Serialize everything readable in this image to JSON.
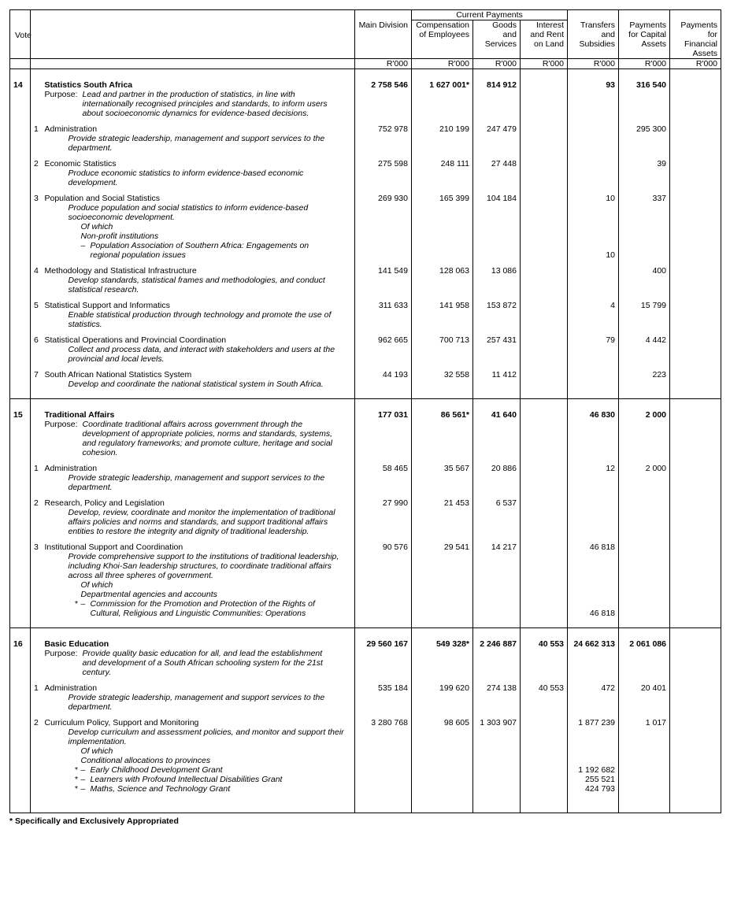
{
  "headers": {
    "vote": "Vote",
    "mainDivision": "Main Division",
    "currentPayments": "Current Payments",
    "compensation": "Compensation of Employees",
    "goodsServices": "Goods and Services",
    "interest": "Interest and Rent on Land",
    "transfers": "Transfers and Subsidies",
    "capital": "Payments for Capital Assets",
    "financial": "Payments for Financial Assets",
    "unit": "R'000"
  },
  "labels": {
    "purpose": "Purpose:",
    "ofWhich": "Of which",
    "footnote": "* Specifically and Exclusively Appropriated"
  },
  "votes": [
    {
      "num": "14",
      "title": "Statistics South Africa",
      "purpose": "Lead and partner in the production of statistics, in line with internationally recognised principles and standards, to inform users about socioeconomic dynamics for evidence-based decisions.",
      "totals": {
        "main": "2 758 546",
        "comp": "1 627 001*",
        "gs": "814 912",
        "int": "",
        "tr": "93",
        "cap": "316 540",
        "fin": ""
      },
      "progs": [
        {
          "n": "1",
          "name": "Administration",
          "desc": "Provide strategic leadership, management and support services to the department.",
          "v": {
            "main": "752 978",
            "comp": "210 199",
            "gs": "247 479",
            "int": "",
            "tr": "",
            "cap": "295 300",
            "fin": ""
          }
        },
        {
          "n": "2",
          "name": "Economic Statistics",
          "desc": "Produce economic statistics to inform evidence-based economic development.",
          "v": {
            "main": "275 598",
            "comp": "248 111",
            "gs": "27 448",
            "int": "",
            "tr": "",
            "cap": "39",
            "fin": ""
          }
        },
        {
          "n": "3",
          "name": "Population and Social Statistics",
          "desc": "Produce population and social statistics to inform evidence-based socioeconomic development.",
          "v": {
            "main": "269 930",
            "comp": "165 399",
            "gs": "104 184",
            "int": "",
            "tr": "10",
            "cap": "337",
            "fin": ""
          },
          "ofWhich": {
            "header": "Non-profit institutions",
            "items": [
              {
                "label": "Population Association of Southern Africa: Engagements on regional population issues",
                "v": {
                  "tr": "10"
                }
              }
            ]
          }
        },
        {
          "n": "4",
          "name": "Methodology and Statistical Infrastructure",
          "desc": "Develop standards, statistical frames and methodologies, and conduct statistical research.",
          "v": {
            "main": "141 549",
            "comp": "128 063",
            "gs": "13 086",
            "int": "",
            "tr": "",
            "cap": "400",
            "fin": ""
          }
        },
        {
          "n": "5",
          "name": "Statistical Support and Informatics",
          "desc": "Enable statistical production through technology and promote the use of statistics.",
          "v": {
            "main": "311 633",
            "comp": "141 958",
            "gs": "153 872",
            "int": "",
            "tr": "4",
            "cap": "15 799",
            "fin": ""
          }
        },
        {
          "n": "6",
          "name": "Statistical Operations and Provincial Coordination",
          "desc": "Collect and process data, and interact with stakeholders and users at the provincial and local levels.",
          "v": {
            "main": "962 665",
            "comp": "700 713",
            "gs": "257 431",
            "int": "",
            "tr": "79",
            "cap": "4 442",
            "fin": ""
          }
        },
        {
          "n": "7",
          "name": "South African National Statistics System",
          "desc": "Develop and coordinate the national statistical system in South Africa.",
          "v": {
            "main": "44 193",
            "comp": "32 558",
            "gs": "11 412",
            "int": "",
            "tr": "",
            "cap": "223",
            "fin": ""
          }
        }
      ]
    },
    {
      "num": "15",
      "title": "Traditional Affairs",
      "purpose": "Coordinate traditional affairs across government through the development of appropriate policies, norms and standards, systems, and regulatory frameworks; and promote culture, heritage and social cohesion.",
      "totals": {
        "main": "177 031",
        "comp": "86 561*",
        "gs": "41 640",
        "int": "",
        "tr": "46 830",
        "cap": "2 000",
        "fin": ""
      },
      "progs": [
        {
          "n": "1",
          "name": "Administration",
          "desc": "Provide strategic leadership, management and support services to the department.",
          "v": {
            "main": "58 465",
            "comp": "35 567",
            "gs": "20 886",
            "int": "",
            "tr": "12",
            "cap": "2 000",
            "fin": ""
          }
        },
        {
          "n": "2",
          "name": "Research, Policy and Legislation",
          "desc": "Develop, review, coordinate and monitor the implementation of traditional affairs policies and norms and standards, and support traditional affairs entities to restore the integrity and dignity of traditional leadership.",
          "v": {
            "main": "27 990",
            "comp": "21 453",
            "gs": "6 537",
            "int": "",
            "tr": "",
            "cap": "",
            "fin": ""
          }
        },
        {
          "n": "3",
          "name": "Institutional Support and Coordination",
          "desc": "Provide comprehensive support to the institutions of traditional leadership, including Khoi-San leadership structures, to coordinate traditional affairs across all three spheres of government.",
          "v": {
            "main": "90 576",
            "comp": "29 541",
            "gs": "14 217",
            "int": "",
            "tr": "46 818",
            "cap": "",
            "fin": ""
          },
          "ofWhich": {
            "header": "Departmental agencies and accounts",
            "items": [
              {
                "star": "*",
                "label": "Commission for the Promotion and Protection of the Rights of Cultural, Religious and Linguistic Communities: Operations",
                "v": {
                  "tr": "46 818"
                }
              }
            ]
          }
        }
      ]
    },
    {
      "num": "16",
      "title": "Basic Education",
      "purpose": "Provide quality basic education for all, and lead the establishment and development of a South African schooling system for the 21st century.",
      "totals": {
        "main": "29 560 167",
        "comp": "549 328*",
        "gs": "2 246 887",
        "int": "40 553",
        "tr": "24 662 313",
        "cap": "2 061 086",
        "fin": ""
      },
      "progs": [
        {
          "n": "1",
          "name": "Administration",
          "desc": "Provide strategic leadership, management and support services to the department.",
          "v": {
            "main": "535 184",
            "comp": "199 620",
            "gs": "274 138",
            "int": "40 553",
            "tr": "472",
            "cap": "20 401",
            "fin": ""
          }
        },
        {
          "n": "2",
          "name": "Curriculum Policy, Support and Monitoring",
          "desc": "Develop curriculum and assessment policies, and monitor and support their implementation.",
          "v": {
            "main": "3 280 768",
            "comp": "98 605",
            "gs": "1 303 907",
            "int": "",
            "tr": "1 877 239",
            "cap": "1 017",
            "fin": ""
          },
          "ofWhich": {
            "header": "Conditional allocations to provinces",
            "items": [
              {
                "star": "*",
                "label": "Early Childhood Development Grant",
                "v": {
                  "tr": "1 192 682"
                }
              },
              {
                "star": "*",
                "label": "Learners with Profound Intellectual Disabilities Grant",
                "v": {
                  "tr": "255 521"
                }
              },
              {
                "star": "*",
                "label": "Maths, Science and Technology Grant",
                "v": {
                  "tr": "424 793"
                }
              }
            ]
          }
        }
      ],
      "open": true
    }
  ]
}
